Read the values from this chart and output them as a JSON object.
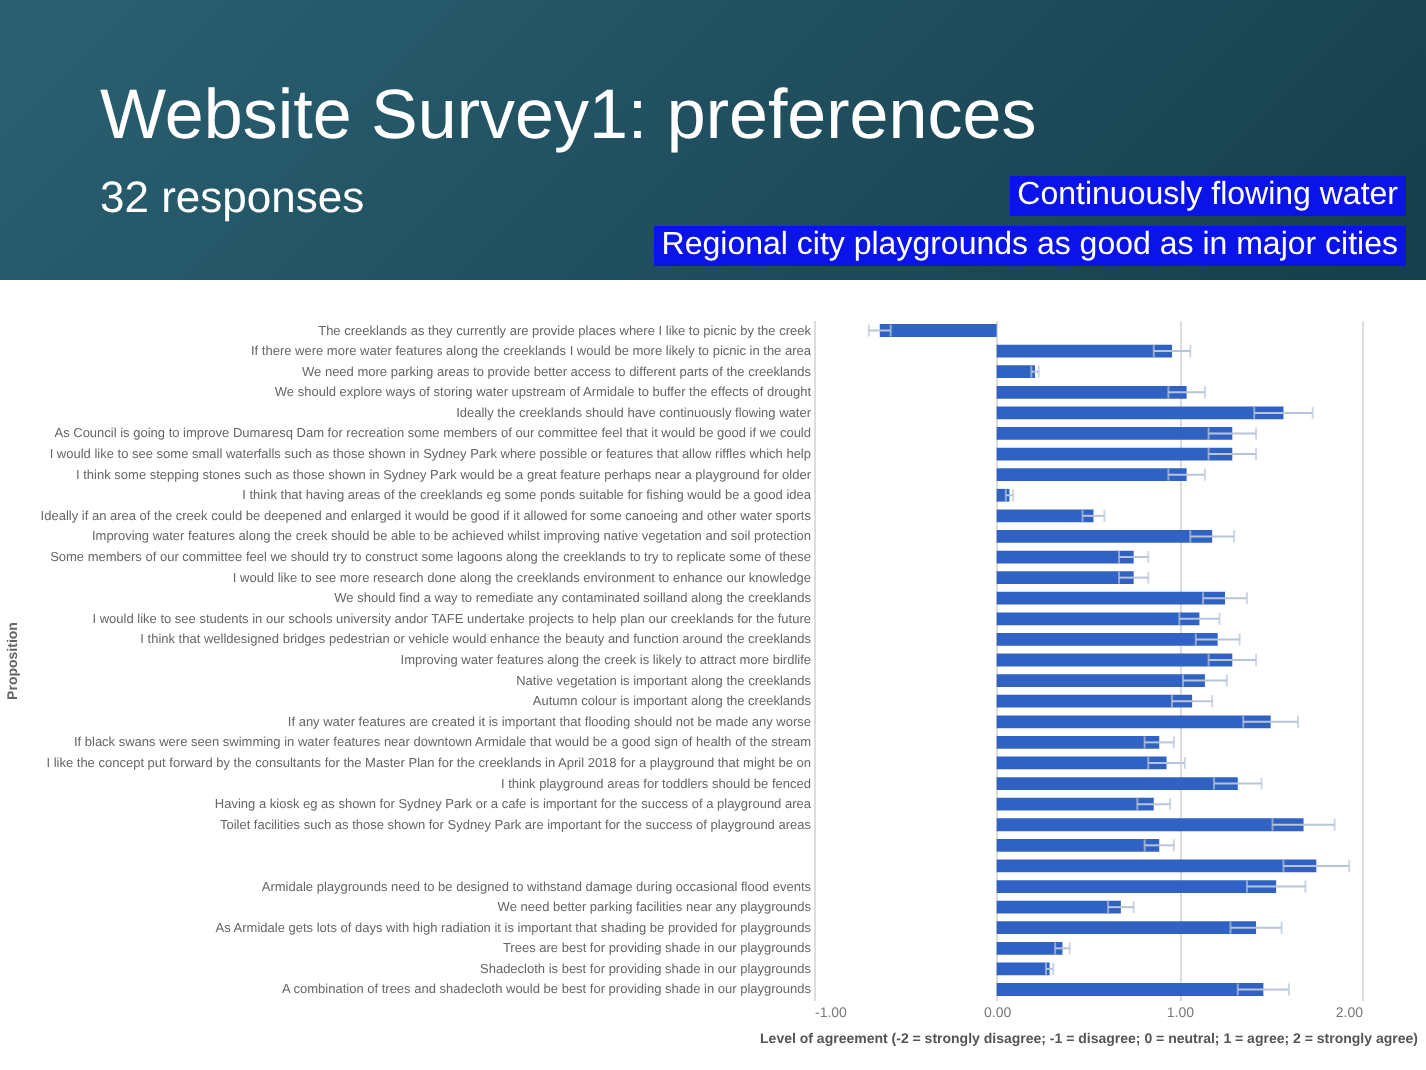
{
  "chart_data": {
    "type": "bar",
    "orientation": "horizontal",
    "title": "Website Survey1: preferences",
    "subtitle": "32 responses",
    "xlabel": "Level of agreement (-2 = strongly disagree; -1 = disagree; 0 = neutral; 1 = agree; 2 = strongly agree)",
    "ylabel": "Proposition",
    "annotations": [
      "Continuously flowing water",
      "Regional city playgrounds as good as in major cities"
    ],
    "categories": [
      "The creeklands as they currently are provide places where I like to picnic by the creek",
      "If there were more water features along the creeklands I would be more likely to picnic in the area",
      "We need more parking areas to provide better access to different parts of the creeklands",
      "We should explore ways of storing water upstream of Armidale to buffer the effects of drought",
      "Ideally the creeklands should have continuously flowing water",
      "As Council is going to improve Dumaresq Dam for recreation some members of our committee feel that it would be good if we could",
      "I would like to see some small waterfalls such as those shown in Sydney Park where possible or features that allow riffles which help",
      "I think some  stepping stones such as those shown in Sydney Park would be a great feature perhaps near a playground for older",
      "I think that having areas of the creeklands eg some ponds suitable for fishing would be a good idea",
      "Ideally if an area of the creek could be deepened and enlarged it would be good if it allowed for some canoeing and other water sports",
      "Improving water features along the creek should be able to be achieved whilst improving native vegetation and soil protection",
      "Some members of our committee feel we should try to construct some lagoons along the creeklands to try to replicate some of these",
      "I would like to see more research done along the creeklands environment to enhance our knowledge",
      "We should find a way to remediate any contaminated soilland along the creeklands",
      "I would like to see students in our schools university andor TAFE undertake projects to help plan our creeklands for the future",
      "I think that welldesigned bridges pedestrian or vehicle would enhance the beauty and function around the creeklands",
      "Improving water features along the creek is likely to attract more birdlife",
      "Native vegetation is important along the creeklands",
      "Autumn colour is important along the creeklands",
      "If any water features are created it is important that flooding should not be made any worse",
      "If black swans were seen swimming in water features near downtown Armidale that would be a good sign of health of the stream",
      "I like the concept put forward by the consultants for the Master Plan for the creeklands in April 2018 for a playground that might be on",
      "I think playground areas for toddlers should be fenced",
      "Having a kiosk eg as shown for Sydney Park or a cafe is important for the success of a playground area",
      "Toilet facilities such as those shown for Sydney Park are important for the success of playground areas",
      null,
      null,
      "Armidale playgrounds need to be designed to withstand damage during occasional flood events",
      "We need better parking facilities near any playgrounds",
      "As Armidale gets lots of days with high radiation it is important that shading be provided for playgrounds",
      "Trees are best for providing shade in our playgrounds",
      "Shadecloth is best for providing shade in our playgrounds",
      "A combination of trees and shadecloth would be best for providing shade in our playgrounds"
    ],
    "values": [
      -0.64,
      0.96,
      0.21,
      1.04,
      1.57,
      1.29,
      1.29,
      1.04,
      0.07,
      0.53,
      1.18,
      0.75,
      0.75,
      1.25,
      1.11,
      1.21,
      1.29,
      1.14,
      1.07,
      1.5,
      0.89,
      0.93,
      1.32,
      0.86,
      1.68,
      0.89,
      1.75,
      1.53,
      0.68,
      1.42,
      0.36,
      0.29,
      1.46
    ],
    "errors": [
      0.06,
      0.1,
      0.02,
      0.1,
      0.16,
      0.13,
      0.13,
      0.1,
      0.02,
      0.06,
      0.12,
      0.08,
      0.08,
      0.12,
      0.11,
      0.12,
      0.13,
      0.12,
      0.11,
      0.15,
      0.08,
      0.1,
      0.13,
      0.09,
      0.17,
      0.08,
      0.18,
      0.16,
      0.07,
      0.14,
      0.04,
      0.02,
      0.14
    ],
    "color": "#3062c4",
    "xlim": [
      -1,
      2
    ],
    "xticks": [
      {
        "value": -1,
        "label": "-1.00"
      },
      {
        "value": 0,
        "label": "0.00"
      },
      {
        "value": 1,
        "label": "1.00"
      },
      {
        "value": 2,
        "label": "2.00"
      }
    ],
    "grid": "x"
  }
}
